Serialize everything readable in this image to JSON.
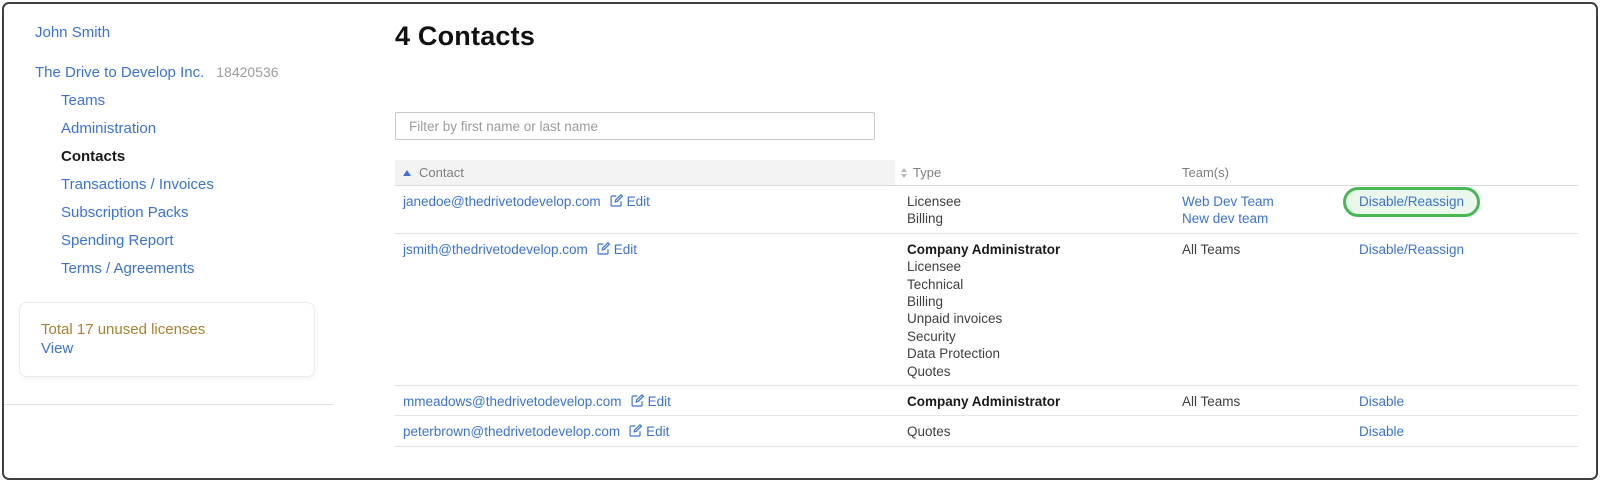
{
  "colors": {
    "link_blue": "#3b73d2",
    "highlight_green": "#47b852",
    "highlight_green_fill": "#ecf7ec",
    "license_gold": "#a8812f",
    "header_bg": "#f3f3f3"
  },
  "icons": {
    "edit": "edit-icon",
    "sort_ascending": "sort-ascending-icon",
    "sort_both": "sort-both-icon"
  },
  "sidebar": {
    "user_link": "John Smith",
    "org_link": "The Drive to Develop Inc.",
    "org_id": "18420536",
    "nav_items": [
      {
        "label": "Teams",
        "active": false
      },
      {
        "label": "Administration",
        "active": false
      },
      {
        "label": "Contacts",
        "active": true
      },
      {
        "label": "Transactions / Invoices",
        "active": false
      },
      {
        "label": "Subscription Packs",
        "active": false
      },
      {
        "label": "Spending Report",
        "active": false
      },
      {
        "label": "Terms / Agreements",
        "active": false
      }
    ],
    "license_box": {
      "message": "Total 17 unused licenses",
      "link": "View"
    }
  },
  "main": {
    "title": "4 Contacts",
    "filter_placeholder": "Filter by first name or last name",
    "table": {
      "edit_label": "Edit",
      "columns": [
        {
          "label": "Contact",
          "sort": "asc"
        },
        {
          "label": "Type",
          "sort": "both"
        },
        {
          "label": "Team(s)",
          "sort": null
        },
        {
          "label": "",
          "sort": null
        }
      ],
      "rows": [
        {
          "email": "janedoe@thedrivetodevelop.com",
          "types": [
            {
              "label": "Licensee",
              "bold": false
            },
            {
              "label": "Billing",
              "bold": false
            }
          ],
          "teams": [
            {
              "label": "Web Dev Team",
              "link": true
            },
            {
              "label": "New dev team",
              "link": true
            }
          ],
          "action": "Disable/Reassign",
          "action_highlighted": true
        },
        {
          "email": "jsmith@thedrivetodevelop.com",
          "types": [
            {
              "label": "Company Administrator",
              "bold": true
            },
            {
              "label": "Licensee",
              "bold": false
            },
            {
              "label": "Technical",
              "bold": false
            },
            {
              "label": "Billing",
              "bold": false
            },
            {
              "label": "Unpaid invoices",
              "bold": false
            },
            {
              "label": "Security",
              "bold": false
            },
            {
              "label": "Data Protection",
              "bold": false
            },
            {
              "label": "Quotes",
              "bold": false
            }
          ],
          "teams": [
            {
              "label": "All Teams",
              "link": false
            }
          ],
          "action": "Disable/Reassign",
          "action_highlighted": false
        },
        {
          "email": "mmeadows@thedrivetodevelop.com",
          "types": [
            {
              "label": "Company Administrator",
              "bold": true
            }
          ],
          "teams": [
            {
              "label": "All Teams",
              "link": false
            }
          ],
          "action": "Disable",
          "action_highlighted": false
        },
        {
          "email": "peterbrown@thedrivetodevelop.com",
          "types": [
            {
              "label": "Quotes",
              "bold": false
            }
          ],
          "teams": [],
          "action": "Disable",
          "action_highlighted": false
        }
      ]
    }
  }
}
